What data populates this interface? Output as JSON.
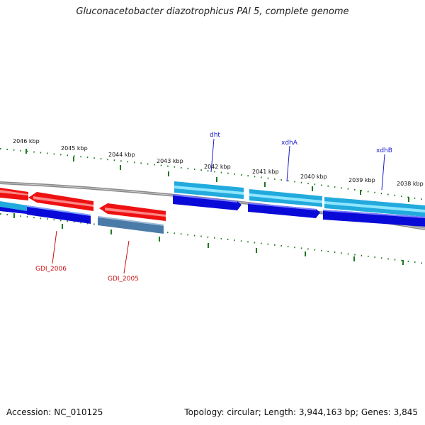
{
  "title": "Gluconacetobacter diazotrophicus PAl 5, complete genome",
  "footer": {
    "accession": "Accession: NC_010125",
    "stats": "Topology: circular; Length: 3,944,163 bp; Genes: 3,845"
  },
  "colors": {
    "backbone": "#8a8a8a",
    "tick": "#1f7a1f",
    "forward_label": "#1a1acc",
    "reverse_label": "#cc1111",
    "red_gene": "#ee1111",
    "cyan_gene": "#22aadd",
    "blue_gene": "#0a0ad8",
    "steel_gene": "#4a7aa8"
  },
  "ticks": [
    {
      "label": "2046 kbp"
    },
    {
      "label": "2045 kbp"
    },
    {
      "label": "2044 kbp"
    },
    {
      "label": "2043 kbp"
    },
    {
      "label": "2042 kbp"
    },
    {
      "label": "2041 kbp"
    },
    {
      "label": "2040 kbp"
    },
    {
      "label": "2039 kbp"
    },
    {
      "label": "2038 kbp"
    }
  ],
  "gene_labels": [
    {
      "name": "dht",
      "strand": "forward"
    },
    {
      "name": "xdhA",
      "strand": "forward"
    },
    {
      "name": "xdhB",
      "strand": "forward"
    },
    {
      "name": "GDI_2006",
      "strand": "reverse"
    },
    {
      "name": "GDI_2005",
      "strand": "reverse"
    }
  ]
}
